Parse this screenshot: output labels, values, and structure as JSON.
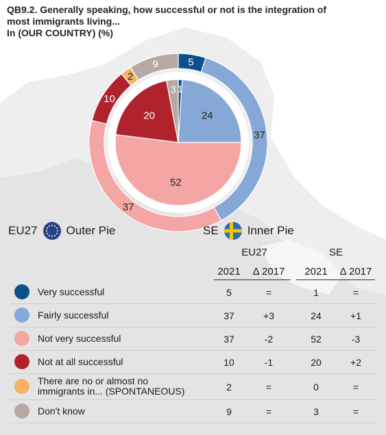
{
  "title": {
    "line1": "QB9.2. Generally speaking, how successful or not is the integration of",
    "line2": "most immigrants living...",
    "line3": "In (OUR COUNTRY) (%)"
  },
  "legend": {
    "outer_code": "EU27",
    "outer_label": "Outer Pie",
    "inner_code": "SE",
    "inner_label": "Inner Pie"
  },
  "table": {
    "group_eu": "EU27",
    "group_se": "SE",
    "col_year": "2021",
    "col_delta": "Δ 2017",
    "rows": [
      {
        "label": "Very successful",
        "eu": "5",
        "eu_delta": "=",
        "se": "1",
        "se_delta": "=",
        "color": "#0d4f8b"
      },
      {
        "label": "Fairly successful",
        "eu": "37",
        "eu_delta": "+3",
        "se": "24",
        "se_delta": "+1",
        "color": "#86a8d6"
      },
      {
        "label": "Not very successful",
        "eu": "37",
        "eu_delta": "-2",
        "se": "52",
        "se_delta": "-3",
        "color": "#f4a6a4"
      },
      {
        "label": "Not at all successful",
        "eu": "10",
        "eu_delta": "-1",
        "se": "20",
        "se_delta": "+2",
        "color": "#b0232d"
      },
      {
        "label_line1": "There are no or almost no",
        "label_line2": "immigrants in... (SPONTANEOUS)",
        "eu": "2",
        "eu_delta": "=",
        "se": "0",
        "se_delta": "=",
        "color": "#f6b461"
      },
      {
        "label": "Don't know",
        "eu": "9",
        "eu_delta": "=",
        "se": "3",
        "se_delta": "=",
        "color": "#b6a9a1"
      }
    ]
  },
  "chart_data": {
    "type": "pie",
    "categories": [
      "Very successful",
      "Fairly successful",
      "Not very successful",
      "Not at all successful",
      "There are no or almost no immigrants in... (SPONTANEOUS)",
      "Don't know"
    ],
    "colors": [
      "#0d4f8b",
      "#86a8d6",
      "#f4a6a4",
      "#b0232d",
      "#f6b461",
      "#b6a9a1"
    ],
    "series": [
      {
        "name": "EU27",
        "ring": "outer",
        "values": [
          5,
          37,
          37,
          10,
          2,
          9
        ]
      },
      {
        "name": "SE",
        "ring": "inner",
        "values": [
          1,
          24,
          52,
          20,
          0,
          3
        ]
      }
    ]
  }
}
